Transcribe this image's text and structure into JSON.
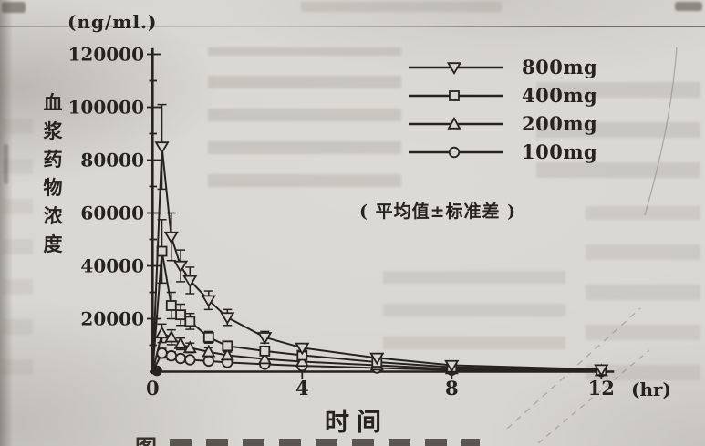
{
  "page": {
    "caption_fragment": "图"
  },
  "chart_data": {
    "type": "line",
    "title": "",
    "xlabel": "时间",
    "x_unit": "(hr)",
    "ylabel": "血浆药物浓度",
    "y_unit": "(ng/ml.)",
    "annotation": "( 平均值±标准差 )",
    "legend_position": "upper right",
    "grid": false,
    "error_bars": "mean ± standard deviation",
    "xlim": [
      0,
      12.4
    ],
    "ylim": [
      0,
      124000
    ],
    "x_ticks": [
      0,
      4,
      8,
      12
    ],
    "y_ticks": [
      20000,
      40000,
      60000,
      80000,
      100000,
      120000
    ],
    "y_minor_tick_step": 10000,
    "x": [
      0,
      0.25,
      0.5,
      0.75,
      1,
      1.5,
      2,
      3,
      4,
      6,
      8,
      12
    ],
    "series": [
      {
        "name": "800mg",
        "marker": "triangle-down",
        "values": [
          0,
          85000,
          51000,
          40000,
          34500,
          27000,
          20500,
          13000,
          9000,
          5200,
          2400,
          800
        ],
        "sd": [
          0,
          16000,
          9000,
          6000,
          5000,
          3500,
          3000,
          2200,
          1500,
          1000,
          600,
          0
        ]
      },
      {
        "name": "400mg",
        "marker": "square",
        "values": [
          0,
          45500,
          25000,
          21500,
          19000,
          13000,
          9700,
          7800,
          6200,
          3600,
          1700,
          500
        ],
        "sd": [
          0,
          12000,
          5000,
          4000,
          3000,
          2200,
          1800,
          1300,
          1000,
          700,
          400,
          0
        ]
      },
      {
        "name": "200mg",
        "marker": "triangle-up",
        "values": [
          0,
          14500,
          13000,
          10500,
          9000,
          7500,
          6200,
          4800,
          3800,
          2400,
          1000,
          300
        ],
        "sd": [
          0,
          3500,
          2800,
          2200,
          1800,
          1500,
          1200,
          900,
          700,
          450,
          250,
          0
        ]
      },
      {
        "name": "100mg",
        "marker": "circle",
        "values": [
          0,
          7000,
          6000,
          5000,
          4500,
          4000,
          3500,
          2800,
          2200,
          1400,
          600,
          150
        ],
        "sd": [
          0,
          1800,
          1500,
          1200,
          1000,
          800,
          700,
          550,
          450,
          300,
          150,
          0
        ]
      }
    ]
  },
  "colors": {
    "ink": "#26221e",
    "paper": "#d8d6d1"
  }
}
